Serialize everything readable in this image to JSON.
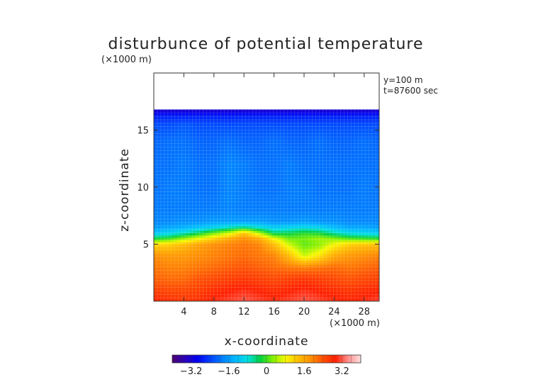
{
  "chart_data": {
    "type": "heatmap",
    "title": "disturbunce of potential temperature",
    "xlabel": "x-coordinate",
    "ylabel": "z-coordinate",
    "x_unit": "(×1000 m)",
    "y_unit": "(×1000 m)",
    "xlim": [
      0,
      30
    ],
    "ylim": [
      0,
      20
    ],
    "x_ticks": [
      4,
      8,
      12,
      16,
      20,
      24,
      28
    ],
    "y_ticks": [
      5,
      10,
      15
    ],
    "annotations": [
      "y=100 m",
      "t=87600 sec"
    ],
    "data_top_z": 16.8,
    "colorbar": {
      "ticks": [
        -3.2,
        -1.6,
        0,
        1.6,
        3.2
      ],
      "tick_labels": [
        "−3.2",
        "−1.6",
        "0",
        "1.6",
        "3.2"
      ],
      "range": [
        -4,
        4
      ]
    },
    "x_samples": [
      0,
      2,
      4,
      6,
      8,
      10,
      12,
      14,
      16,
      18,
      20,
      22,
      24,
      26,
      28,
      30
    ],
    "z_samples": [
      0,
      1,
      2,
      3,
      4,
      5,
      5.5,
      6,
      6.5,
      7,
      8,
      10,
      12,
      14,
      15.5,
      16.3,
      16.8
    ],
    "values": [
      [
        2.9,
        2.8,
        2.7,
        2.8,
        3.0,
        3.1,
        3.2,
        3.1,
        3.0,
        3.1,
        3.2,
        3.1,
        3.0,
        2.9,
        3.0,
        3.1
      ],
      [
        2.6,
        2.5,
        2.5,
        2.6,
        2.8,
        2.9,
        3.0,
        2.9,
        2.8,
        2.9,
        3.0,
        2.9,
        2.8,
        2.7,
        2.8,
        2.9
      ],
      [
        2.3,
        2.2,
        2.2,
        2.4,
        2.5,
        2.6,
        2.7,
        2.6,
        2.5,
        2.6,
        2.7,
        2.6,
        2.5,
        2.4,
        2.5,
        2.6
      ],
      [
        2.1,
        2.0,
        2.0,
        2.1,
        2.2,
        2.3,
        2.4,
        2.3,
        2.2,
        2.1,
        2.0,
        2.1,
        2.2,
        2.1,
        2.2,
        2.3
      ],
      [
        1.9,
        1.8,
        1.8,
        1.9,
        2.0,
        2.1,
        2.2,
        2.1,
        2.0,
        1.4,
        0.6,
        1.0,
        1.6,
        1.8,
        1.9,
        2.0
      ],
      [
        1.1,
        1.2,
        1.4,
        1.7,
        1.9,
        2.0,
        2.1,
        2.0,
        1.4,
        0.6,
        0.1,
        0.3,
        0.8,
        1.2,
        1.3,
        1.4
      ],
      [
        -0.2,
        0.0,
        0.4,
        0.8,
        1.2,
        1.6,
        1.9,
        1.6,
        0.8,
        0.2,
        0.2,
        0.4,
        0.3,
        0.1,
        0.0,
        -0.1
      ],
      [
        -1.2,
        -1.0,
        -0.7,
        -0.3,
        0.2,
        0.6,
        1.3,
        0.5,
        -0.4,
        -0.3,
        -0.1,
        -0.2,
        -0.6,
        -0.9,
        -1.0,
        -1.1
      ],
      [
        -1.6,
        -1.5,
        -1.4,
        -1.2,
        -1.0,
        -0.7,
        -0.5,
        -0.8,
        -1.1,
        -1.0,
        -0.9,
        -1.0,
        -1.3,
        -1.5,
        -1.5,
        -1.6
      ],
      [
        -1.8,
        -1.8,
        -1.7,
        -1.7,
        -1.6,
        -1.6,
        -1.6,
        -1.6,
        -1.7,
        -1.7,
        -1.6,
        -1.7,
        -1.7,
        -1.8,
        -1.8,
        -1.8
      ],
      [
        -1.9,
        -1.9,
        -1.9,
        -1.9,
        -1.9,
        -1.8,
        -1.9,
        -1.9,
        -1.9,
        -1.9,
        -1.9,
        -1.9,
        -1.9,
        -1.9,
        -1.9,
        -1.9
      ],
      [
        -2.0,
        -1.9,
        -1.9,
        -2.0,
        -2.0,
        -1.8,
        -1.9,
        -2.0,
        -2.0,
        -1.9,
        -1.9,
        -2.0,
        -2.0,
        -2.0,
        -1.9,
        -2.0
      ],
      [
        -2.0,
        -2.0,
        -1.9,
        -2.0,
        -2.0,
        -1.8,
        -1.9,
        -2.0,
        -2.0,
        -1.9,
        -2.0,
        -2.0,
        -2.0,
        -2.0,
        -2.0,
        -2.0
      ],
      [
        -2.1,
        -2.0,
        -2.0,
        -2.1,
        -2.1,
        -2.0,
        -2.1,
        -2.1,
        -2.0,
        -2.1,
        -2.1,
        -2.0,
        -2.1,
        -2.1,
        -2.0,
        -2.1
      ],
      [
        -2.3,
        -2.3,
        -2.2,
        -2.3,
        -2.3,
        -2.3,
        -2.3,
        -2.3,
        -2.3,
        -2.3,
        -2.3,
        -2.3,
        -2.3,
        -2.3,
        -2.3,
        -2.3
      ],
      [
        -2.7,
        -2.7,
        -2.7,
        -2.7,
        -2.7,
        -2.7,
        -2.7,
        -2.7,
        -2.7,
        -2.7,
        -2.7,
        -2.7,
        -2.7,
        -2.7,
        -2.7,
        -2.7
      ],
      [
        -3.3,
        -3.3,
        -3.3,
        -3.3,
        -3.3,
        -3.3,
        -3.3,
        -3.3,
        -3.3,
        -3.3,
        -3.3,
        -3.3,
        -3.3,
        -3.3,
        -3.3,
        -3.3
      ]
    ],
    "colormap": [
      "#4c0070",
      "#2a00b8",
      "#0000f0",
      "#0040ff",
      "#0080ff",
      "#00b8ff",
      "#00e0e0",
      "#00d040",
      "#80f000",
      "#f8f800",
      "#ffc000",
      "#ff9000",
      "#ff5000",
      "#ff2000",
      "#ff9090",
      "#ffe0e0"
    ]
  }
}
